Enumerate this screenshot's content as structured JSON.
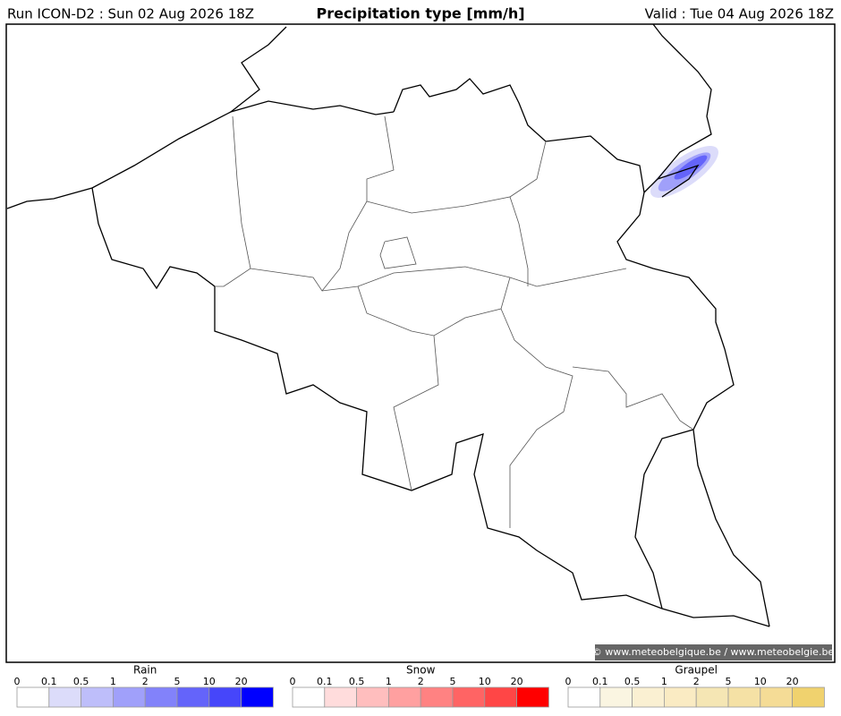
{
  "header": {
    "run": "Run ICON-D2 : Sun 02 Aug 2026 18Z",
    "title": "Precipitation type [mm/h]",
    "valid": "Valid : Tue 04 Aug 2026 18Z"
  },
  "credit": "© www.meteobelgique.be / www.meteobelgie.be",
  "legends": [
    {
      "title": "Rain",
      "ticks": [
        0,
        0.1,
        0.5,
        1,
        2,
        5,
        10,
        20
      ],
      "colors": [
        "#ffffff",
        "#dcdcfa",
        "#bebefa",
        "#a0a0fa",
        "#8282fa",
        "#6464fa",
        "#4646fa",
        "#0000ff"
      ]
    },
    {
      "title": "Snow",
      "ticks": [
        0,
        0.1,
        0.5,
        1,
        2,
        5,
        10,
        20
      ],
      "colors": [
        "#ffffff",
        "#ffdcdc",
        "#ffbebe",
        "#ffa0a0",
        "#ff8282",
        "#ff6464",
        "#ff4646",
        "#ff0000"
      ]
    },
    {
      "title": "Graupel",
      "ticks": [
        0,
        0.1,
        0.5,
        1,
        2,
        5,
        10,
        20
      ],
      "colors": [
        "#ffffff",
        "#faf5e1",
        "#faf0d2",
        "#faebc3",
        "#f5e6b4",
        "#f5e1a5",
        "#f5dc96",
        "#f0d26e"
      ]
    }
  ]
}
